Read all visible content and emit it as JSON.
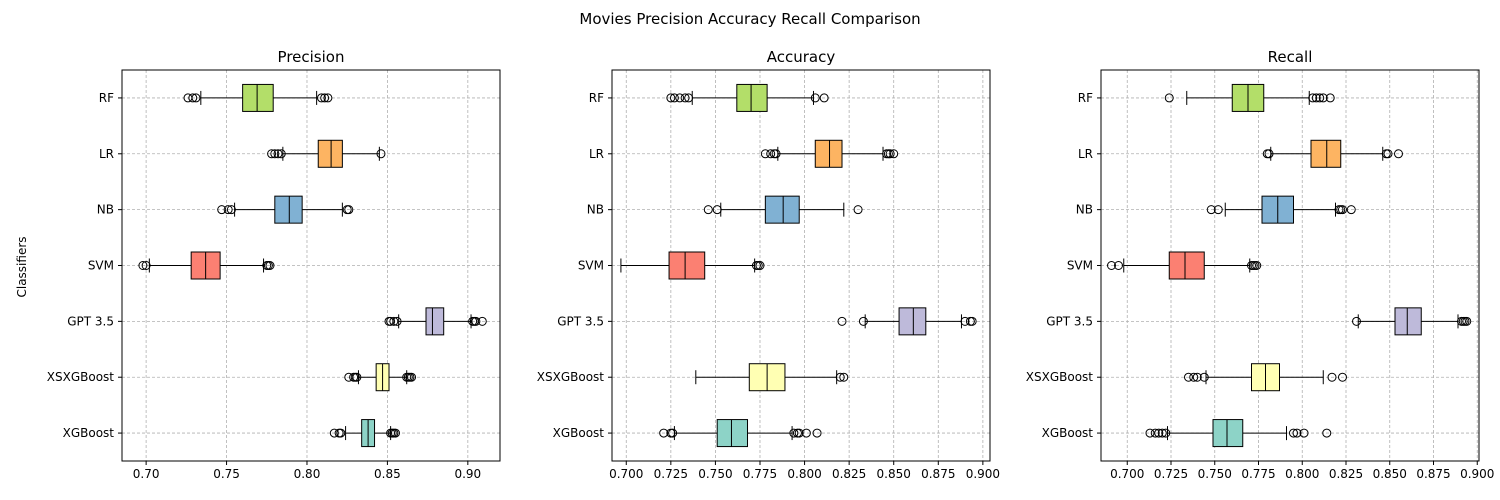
{
  "figure": {
    "suptitle": "Movies Precision Accuracy Recall Comparison",
    "ylabel": "Classifiers"
  },
  "colors": {
    "XGBoost": "#8dd3c7",
    "XSXGBoost": "#ffffb3",
    "GPT 3.5": "#bebada",
    "SVM": "#fb8072",
    "NB": "#80b1d3",
    "LR": "#fdb462",
    "RF": "#b3de69",
    "grid": "#b0b0b0"
  },
  "chart_data": [
    {
      "type": "box",
      "title": "Precision",
      "xlim": [
        0.685,
        0.92
      ],
      "xticks": [
        "0.70",
        "0.75",
        "0.80",
        "0.85",
        "0.90"
      ],
      "xtick_values": [
        0.7,
        0.75,
        0.8,
        0.85,
        0.9
      ],
      "grid": true,
      "categories": [
        "XGBoost",
        "XSXGBoost",
        "GPT 3.5",
        "SVM",
        "NB",
        "LR",
        "RF"
      ],
      "boxes": [
        {
          "name": "XGBoost",
          "whislo": 0.824,
          "q1": 0.834,
          "med": 0.838,
          "q3": 0.842,
          "whishi": 0.852,
          "fliers": [
            0.817,
            0.82,
            0.821,
            0.852,
            0.853,
            0.854,
            0.855
          ]
        },
        {
          "name": "XSXGBoost",
          "whislo": 0.832,
          "q1": 0.843,
          "med": 0.847,
          "q3": 0.851,
          "whishi": 0.862,
          "fliers": [
            0.826,
            0.829,
            0.83,
            0.831,
            0.862,
            0.863,
            0.864,
            0.865
          ]
        },
        {
          "name": "GPT 3.5",
          "whislo": 0.857,
          "q1": 0.874,
          "med": 0.878,
          "q3": 0.885,
          "whishi": 0.902,
          "fliers": [
            0.851,
            0.852,
            0.854,
            0.856,
            0.903,
            0.904,
            0.905,
            0.909
          ]
        },
        {
          "name": "SVM",
          "whislo": 0.702,
          "q1": 0.728,
          "med": 0.737,
          "q3": 0.746,
          "whishi": 0.773,
          "fliers": [
            0.698,
            0.7,
            0.775,
            0.776,
            0.777
          ]
        },
        {
          "name": "NB",
          "whislo": 0.755,
          "q1": 0.78,
          "med": 0.789,
          "q3": 0.797,
          "whishi": 0.822,
          "fliers": [
            0.747,
            0.751,
            0.753,
            0.825,
            0.826
          ]
        },
        {
          "name": "LR",
          "whislo": 0.785,
          "q1": 0.807,
          "med": 0.815,
          "q3": 0.822,
          "whishi": 0.845,
          "fliers": [
            0.778,
            0.78,
            0.782,
            0.784,
            0.846
          ]
        },
        {
          "name": "RF",
          "whislo": 0.734,
          "q1": 0.76,
          "med": 0.769,
          "q3": 0.779,
          "whishi": 0.806,
          "fliers": [
            0.726,
            0.729,
            0.731,
            0.809,
            0.811,
            0.813
          ]
        }
      ]
    },
    {
      "type": "box",
      "title": "Accuracy",
      "xlim": [
        0.692,
        0.904
      ],
      "xticks": [
        "0.700",
        "0.725",
        "0.750",
        "0.775",
        "0.800",
        "0.825",
        "0.850",
        "0.875",
        "0.900"
      ],
      "xtick_values": [
        0.7,
        0.725,
        0.75,
        0.775,
        0.8,
        0.825,
        0.85,
        0.875,
        0.9
      ],
      "grid": true,
      "categories": [
        "XGBoost",
        "XSXGBoost",
        "GPT 3.5",
        "SVM",
        "NB",
        "LR",
        "RF"
      ],
      "boxes": [
        {
          "name": "XGBoost",
          "whislo": 0.727,
          "q1": 0.751,
          "med": 0.759,
          "q3": 0.768,
          "whishi": 0.793,
          "fliers": [
            0.721,
            0.725,
            0.726,
            0.794,
            0.796,
            0.797,
            0.801,
            0.807
          ]
        },
        {
          "name": "XSXGBoost",
          "whislo": 0.739,
          "q1": 0.769,
          "med": 0.779,
          "q3": 0.789,
          "whishi": 0.818,
          "fliers": [
            0.82,
            0.822
          ]
        },
        {
          "name": "GPT 3.5",
          "whislo": 0.834,
          "q1": 0.853,
          "med": 0.861,
          "q3": 0.868,
          "whishi": 0.888,
          "fliers": [
            0.821,
            0.833,
            0.89,
            0.893,
            0.894
          ]
        },
        {
          "name": "SVM",
          "whislo": 0.697,
          "q1": 0.724,
          "med": 0.733,
          "q3": 0.744,
          "whishi": 0.772,
          "fliers": [
            0.773,
            0.774,
            0.775
          ]
        },
        {
          "name": "NB",
          "whislo": 0.753,
          "q1": 0.778,
          "med": 0.788,
          "q3": 0.797,
          "whishi": 0.822,
          "fliers": [
            0.746,
            0.751,
            0.83
          ]
        },
        {
          "name": "LR",
          "whislo": 0.785,
          "q1": 0.806,
          "med": 0.814,
          "q3": 0.821,
          "whishi": 0.844,
          "fliers": [
            0.778,
            0.781,
            0.783,
            0.784,
            0.846,
            0.847,
            0.848,
            0.85
          ]
        },
        {
          "name": "RF",
          "whislo": 0.737,
          "q1": 0.762,
          "med": 0.77,
          "q3": 0.779,
          "whishi": 0.805,
          "fliers": [
            0.725,
            0.727,
            0.73,
            0.733,
            0.735,
            0.806,
            0.811
          ]
        }
      ]
    },
    {
      "type": "box",
      "title": "Recall",
      "xlim": [
        0.685,
        0.901
      ],
      "xticks": [
        "0.700",
        "0.725",
        "0.750",
        "0.775",
        "0.800",
        "0.825",
        "0.850",
        "0.875",
        "0.900"
      ],
      "xtick_values": [
        0.7,
        0.725,
        0.75,
        0.775,
        0.8,
        0.825,
        0.85,
        0.875,
        0.9
      ],
      "grid": true,
      "categories": [
        "XGBoost",
        "XSXGBoost",
        "GPT 3.5",
        "SVM",
        "NB",
        "LR",
        "RF"
      ],
      "boxes": [
        {
          "name": "XGBoost",
          "whislo": 0.723,
          "q1": 0.749,
          "med": 0.757,
          "q3": 0.766,
          "whishi": 0.791,
          "fliers": [
            0.713,
            0.716,
            0.718,
            0.72,
            0.722,
            0.795,
            0.797,
            0.801,
            0.814
          ]
        },
        {
          "name": "XSXGBoost",
          "whislo": 0.745,
          "q1": 0.771,
          "med": 0.779,
          "q3": 0.787,
          "whishi": 0.812,
          "fliers": [
            0.735,
            0.738,
            0.74,
            0.744,
            0.817,
            0.823
          ]
        },
        {
          "name": "GPT 3.5",
          "whislo": 0.832,
          "q1": 0.853,
          "med": 0.86,
          "q3": 0.868,
          "whishi": 0.889,
          "fliers": [
            0.831,
            0.891,
            0.892,
            0.893,
            0.894
          ]
        },
        {
          "name": "SVM",
          "whislo": 0.698,
          "q1": 0.724,
          "med": 0.733,
          "q3": 0.744,
          "whishi": 0.77,
          "fliers": [
            0.691,
            0.695,
            0.771,
            0.772,
            0.773,
            0.774
          ]
        },
        {
          "name": "NB",
          "whislo": 0.756,
          "q1": 0.777,
          "med": 0.786,
          "q3": 0.795,
          "whishi": 0.819,
          "fliers": [
            0.748,
            0.752,
            0.821,
            0.822,
            0.823,
            0.828
          ]
        },
        {
          "name": "LR",
          "whislo": 0.782,
          "q1": 0.805,
          "med": 0.814,
          "q3": 0.822,
          "whishi": 0.846,
          "fliers": [
            0.78,
            0.781,
            0.848,
            0.849,
            0.855
          ]
        },
        {
          "name": "RF",
          "whislo": 0.734,
          "q1": 0.76,
          "med": 0.769,
          "q3": 0.778,
          "whishi": 0.804,
          "fliers": [
            0.724,
            0.806,
            0.808,
            0.81,
            0.812,
            0.816
          ]
        }
      ]
    }
  ]
}
